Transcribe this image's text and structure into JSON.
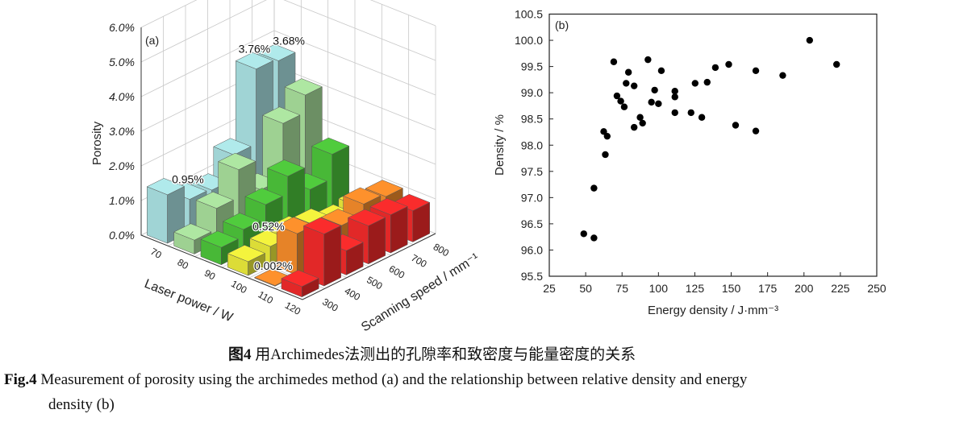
{
  "chart_data": [
    {
      "type": "bar3d",
      "panel_label": "(a)",
      "xlabel": "Laser power / W",
      "ylabel": "Scanning speed / mm⁻¹",
      "zlabel": "Porosity",
      "laser_power": [
        70,
        80,
        90,
        100,
        110,
        120
      ],
      "scanning_speed": [
        300,
        400,
        500,
        600,
        700,
        800
      ],
      "z_ticks": [
        "0.0%",
        "1.0%",
        "2.0%",
        "3.0%",
        "4.0%",
        "5.0%",
        "6.0%"
      ],
      "zlim": [
        0,
        6
      ],
      "grid": true,
      "series": [
        {
          "laser_power": 70,
          "color": "#a8dfe0",
          "values": [
            1.4,
            0.95,
            0.9,
            1.6,
            3.76,
            3.68
          ]
        },
        {
          "laser_power": 80,
          "color": "#a6dc9a",
          "values": [
            0.4,
            1.0,
            1.8,
            0.9,
            2.5,
            3.0
          ]
        },
        {
          "laser_power": 90,
          "color": "#4cc23a",
          "values": [
            0.5,
            0.7,
            1.1,
            1.6,
            0.9,
            1.6
          ]
        },
        {
          "laser_power": 100,
          "color": "#e8e83a",
          "values": [
            0.4,
            0.52,
            0.6,
            0.5,
            0.3,
            0.4
          ]
        },
        {
          "laser_power": 110,
          "color": "#f28a2a",
          "values": [
            0.002,
            1.2,
            0.4,
            0.8,
            1.1,
            1.0
          ]
        },
        {
          "laser_power": 120,
          "color": "#ee2a2a",
          "values": [
            0.3,
            1.5,
            0.7,
            1.1,
            1.1,
            0.9
          ]
        }
      ],
      "annotations": [
        {
          "laser_power": 70,
          "speed": 700,
          "text": "3.76%"
        },
        {
          "laser_power": 70,
          "speed": 800,
          "text": "3.68%"
        },
        {
          "laser_power": 70,
          "speed": 400,
          "text": "0.95%"
        },
        {
          "laser_power": 100,
          "speed": 400,
          "text": "0.52%"
        },
        {
          "laser_power": 110,
          "speed": 300,
          "text": "0.002%"
        }
      ]
    },
    {
      "type": "scatter",
      "panel_label": "(b)",
      "xlabel": "Energy density / J·mm⁻³",
      "ylabel": "Density / %",
      "xlim": [
        25,
        250
      ],
      "ylim": [
        95.5,
        100.5
      ],
      "x_ticks": [
        25,
        50,
        75,
        100,
        125,
        150,
        175,
        200,
        225,
        250
      ],
      "y_ticks": [
        "95.5",
        "96.0",
        "96.5",
        "97.0",
        "97.5",
        "98.0",
        "98.5",
        "99.0",
        "99.5",
        "100.0",
        "100.5"
      ],
      "color": "#000000",
      "points": [
        [
          69.3,
          99.59
        ],
        [
          92.8,
          99.63
        ],
        [
          79.4,
          99.39
        ],
        [
          102.0,
          99.42
        ],
        [
          77.8,
          99.18
        ],
        [
          83.3,
          99.13
        ],
        [
          97.4,
          99.05
        ],
        [
          111.3,
          99.03
        ],
        [
          111.3,
          98.92
        ],
        [
          125.2,
          99.18
        ],
        [
          133.5,
          99.2
        ],
        [
          139.1,
          99.48
        ],
        [
          148.3,
          99.54
        ],
        [
          166.9,
          99.42
        ],
        [
          185.4,
          99.33
        ],
        [
          203.9,
          100.0
        ],
        [
          222.4,
          99.54
        ],
        [
          71.5,
          98.94
        ],
        [
          74.1,
          98.84
        ],
        [
          76.5,
          98.73
        ],
        [
          95.2,
          98.82
        ],
        [
          100.0,
          98.79
        ],
        [
          111.3,
          98.62
        ],
        [
          122.4,
          98.62
        ],
        [
          129.8,
          98.53
        ],
        [
          87.4,
          98.53
        ],
        [
          89.1,
          98.42
        ],
        [
          83.3,
          98.34
        ],
        [
          153.0,
          98.38
        ],
        [
          166.9,
          98.27
        ],
        [
          62.4,
          98.26
        ],
        [
          64.8,
          98.17
        ],
        [
          63.5,
          97.82
        ],
        [
          55.7,
          97.18
        ],
        [
          48.7,
          96.31
        ],
        [
          55.7,
          96.23
        ]
      ]
    }
  ],
  "caption": {
    "cn_label": "图4",
    "cn_text": "用Archimedes法测出的孔隙率和致密度与能量密度的关系",
    "en_label": "Fig.4",
    "en_text_line1": "Measurement of porosity using the archimedes method (a) and the relationship between relative density and energy",
    "en_text_line2": "density (b)"
  }
}
